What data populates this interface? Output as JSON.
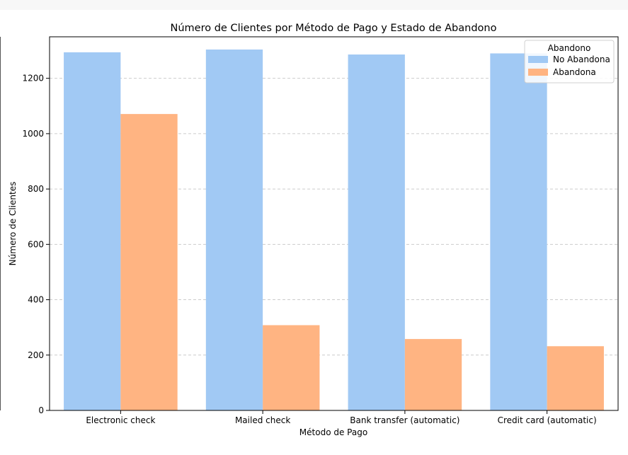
{
  "chart_data": {
    "type": "bar",
    "title": "Número de Clientes por Método de Pago y Estado de Abandono",
    "xlabel": "Método de Pago",
    "ylabel": "Número de Clientes",
    "categories": [
      "Electronic check",
      "Mailed check",
      "Bank transfer (automatic)",
      "Credit card (automatic)"
    ],
    "series": [
      {
        "name": "No Abandona",
        "values": [
          1294,
          1304,
          1286,
          1290
        ],
        "color": "#a1c9f4"
      },
      {
        "name": "Abandona",
        "values": [
          1071,
          308,
          258,
          232
        ],
        "color": "#ffb482"
      }
    ],
    "ylim": [
      0,
      1350
    ],
    "yticks": [
      0,
      200,
      400,
      600,
      800,
      1000,
      1200
    ],
    "grid": "horizontal dashed",
    "legend": {
      "title": "Abandono",
      "placement": "top-right"
    }
  }
}
